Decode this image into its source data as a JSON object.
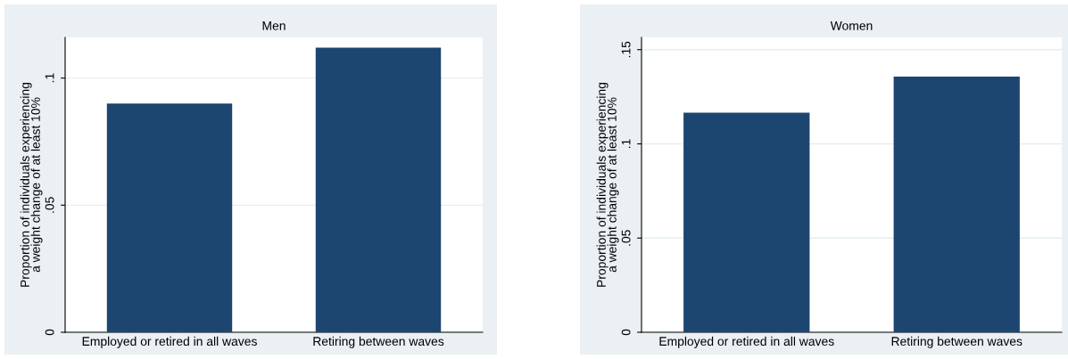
{
  "chart_data": [
    {
      "type": "bar",
      "title": "Men",
      "ylabel": "Proportion of individuals experiencing\na weight change of at least 10%",
      "categories": [
        "Employed or retired in all waves",
        "Retiring between waves"
      ],
      "values": [
        0.09,
        0.112
      ],
      "color": "#1c4570",
      "ylim": [
        0,
        0.116
      ],
      "yticks": [
        {
          "value": 0,
          "label": "0"
        },
        {
          "value": 0.05,
          "label": ".05"
        },
        {
          "value": 0.1,
          "label": ".1"
        }
      ],
      "grid": "y"
    },
    {
      "type": "bar",
      "title": "Women",
      "ylabel": "Proportion of individuals experiencing\na weight change of at least 10%",
      "categories": [
        "Employed or retired in all waves",
        "Retiring between waves"
      ],
      "values": [
        0.1166,
        0.1357
      ],
      "color": "#1c4570",
      "ylim": [
        0,
        0.1565
      ],
      "yticks": [
        {
          "value": 0,
          "label": "0"
        },
        {
          "value": 0.05,
          "label": ".05"
        },
        {
          "value": 0.1,
          "label": ".1"
        },
        {
          "value": 0.15,
          "label": ".15"
        }
      ],
      "grid": "y"
    }
  ]
}
